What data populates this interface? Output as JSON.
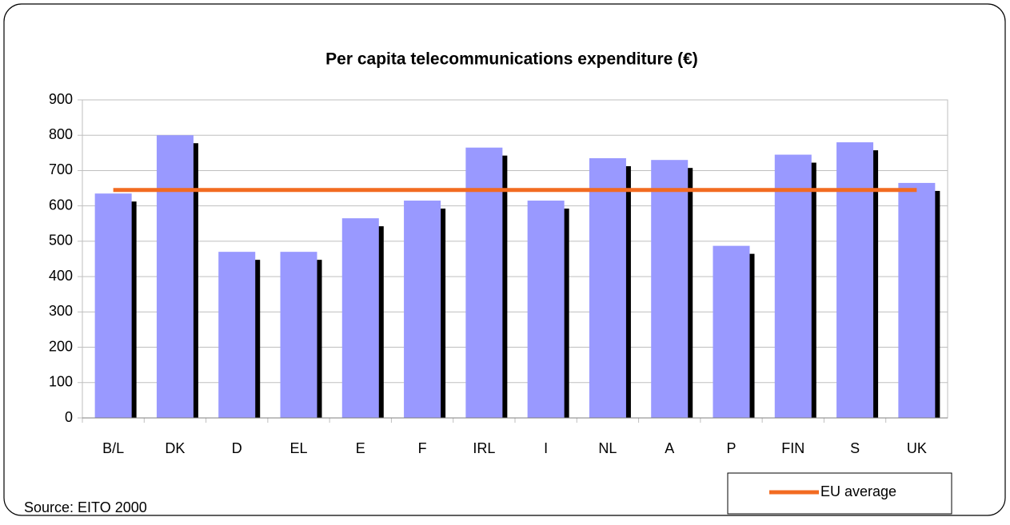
{
  "chart_data": {
    "type": "bar",
    "title": "Per capita telecommunications expenditure (€)",
    "categories": [
      "B/L",
      "DK",
      "D",
      "EL",
      "E",
      "F",
      "IRL",
      "I",
      "NL",
      "A",
      "P",
      "FIN",
      "S",
      "UK"
    ],
    "values": [
      635,
      800,
      470,
      470,
      565,
      615,
      765,
      615,
      735,
      730,
      487,
      745,
      780,
      665
    ],
    "color": "#9999ff",
    "line": {
      "name": "EU average",
      "color": "#f26b21",
      "values": [
        645,
        645,
        645,
        645,
        645,
        645,
        645,
        645,
        645,
        645,
        645,
        645,
        645,
        645
      ]
    },
    "ylim": [
      0,
      900
    ],
    "yticks": [
      0,
      100,
      200,
      300,
      400,
      500,
      600,
      700,
      800,
      900
    ],
    "grid": true,
    "source": "Source: EITO 2000",
    "legend": "bottom-right"
  }
}
